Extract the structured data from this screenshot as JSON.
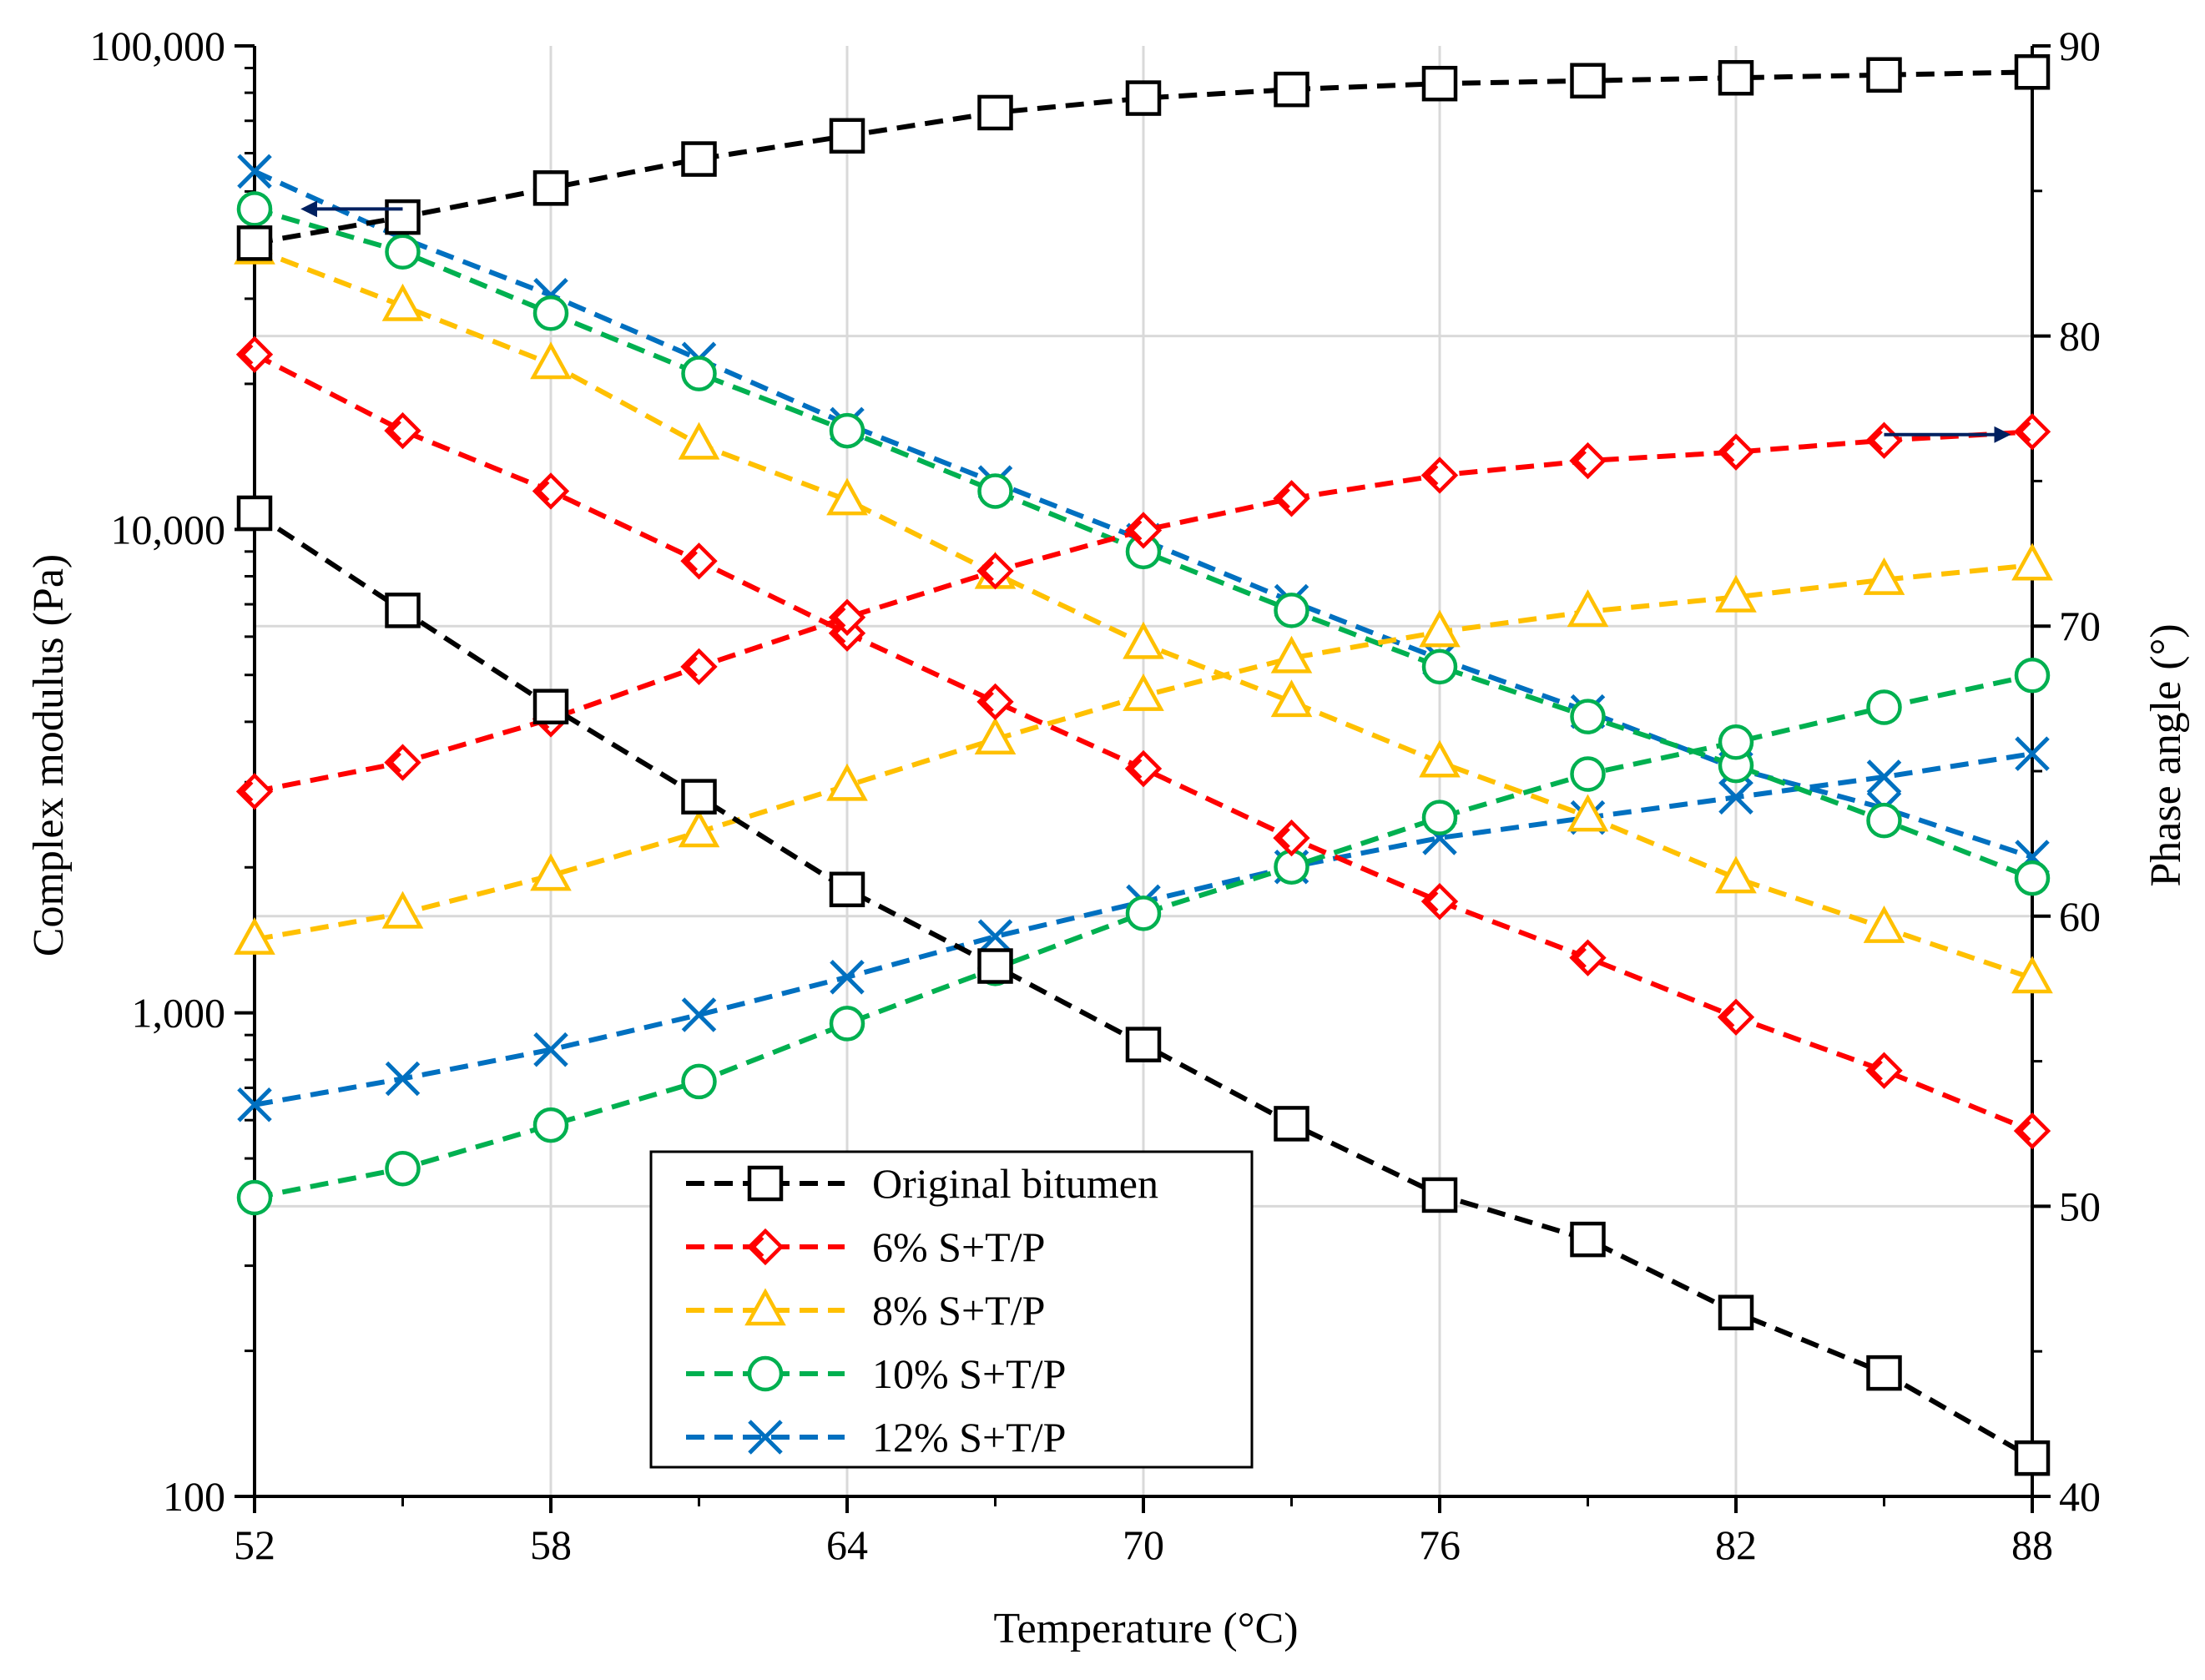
{
  "chart_data": {
    "type": "line",
    "title": "",
    "xlabel": "Temperature (°C)",
    "ylabel_left": "Complex modulus (Pa)",
    "ylabel_right": "Phase angle (°)",
    "x_ticks": [
      "52",
      "58",
      "64",
      "70",
      "76",
      "82",
      "88"
    ],
    "x_tick_values": [
      52,
      58,
      64,
      70,
      76,
      82,
      88
    ],
    "y_left_ticks": [
      "100",
      "1,000",
      "10,000",
      "100,000"
    ],
    "y_left_tick_values": [
      100,
      1000,
      10000,
      100000
    ],
    "y_left_scale": "log",
    "y_left_lim": [
      100,
      100000
    ],
    "y_right_ticks": [
      "40",
      "50",
      "60",
      "70",
      "80",
      "90"
    ],
    "y_right_tick_values": [
      40,
      50,
      60,
      70,
      80,
      90
    ],
    "y_right_lim": [
      40,
      90
    ],
    "x_lim": [
      52,
      88
    ],
    "grid": true,
    "legend_position": "bottom-center",
    "x": [
      52,
      55,
      58,
      61,
      64,
      67,
      70,
      73,
      76,
      79,
      82,
      85,
      88
    ],
    "series": [
      {
        "name": "Original bitumen",
        "color": "#000000",
        "marker": "square",
        "modulus": [
          10800,
          6800,
          4300,
          2800,
          1800,
          1250,
          860,
          590,
          420,
          340,
          240,
          180,
          120
        ],
        "phase_angle": [
          83.2,
          84.1,
          85.1,
          86.1,
          86.9,
          87.7,
          88.2,
          88.5,
          88.7,
          88.8,
          88.9,
          89.0,
          89.1
        ]
      },
      {
        "name": "6% S+T/P",
        "color": "#ff0000",
        "marker": "diamond-arrow",
        "modulus": [
          23000,
          16000,
          12000,
          8600,
          6100,
          4400,
          3200,
          2300,
          1700,
          1300,
          980,
          760,
          570
        ],
        "phase_angle": [
          64.3,
          65.3,
          66.8,
          68.6,
          70.3,
          71.9,
          73.3,
          74.4,
          75.2,
          75.7,
          76.0,
          76.4,
          76.7
        ]
      },
      {
        "name": "8% S+T/P",
        "color": "#ffc000",
        "marker": "triangle",
        "modulus": [
          38000,
          29000,
          22000,
          15000,
          11500,
          8100,
          5800,
          4400,
          3300,
          2550,
          1900,
          1500,
          1180
        ],
        "phase_angle": [
          59.2,
          60.1,
          61.4,
          62.9,
          64.5,
          66.1,
          67.6,
          68.9,
          69.8,
          70.5,
          71.0,
          71.6,
          72.1
        ]
      },
      {
        "name": "10% S+T/P",
        "color": "#00b050",
        "marker": "circle",
        "modulus": [
          46000,
          37500,
          28000,
          21000,
          16000,
          12000,
          9000,
          6800,
          5200,
          4100,
          3250,
          2500,
          1900
        ],
        "phase_angle": [
          50.3,
          51.3,
          52.8,
          54.3,
          56.3,
          58.2,
          60.1,
          61.7,
          63.4,
          64.9,
          66.0,
          67.2,
          68.3
        ]
      },
      {
        "name": "12% S+T/P",
        "color": "#0070c0",
        "marker": "x",
        "modulus": [
          55000,
          40000,
          30500,
          22500,
          16500,
          12500,
          9500,
          7100,
          5400,
          4200,
          3200,
          2650,
          2100
        ],
        "phase_angle": [
          53.5,
          54.4,
          55.4,
          56.6,
          57.9,
          59.3,
          60.5,
          61.7,
          62.7,
          63.4,
          64.1,
          64.8,
          65.6
        ]
      }
    ],
    "annotations": [
      {
        "description": "arrow pointing to left axis",
        "x_from": 55,
        "x_to": 53,
        "y": 46000,
        "axis": "left"
      },
      {
        "description": "arrow pointing to right axis",
        "x_from": 85,
        "x_to": 87.5,
        "y": 76.6,
        "axis": "right"
      }
    ],
    "colors": {
      "arrow": "#002060",
      "grid": "#d9d9d9",
      "axis": "#000000"
    }
  }
}
